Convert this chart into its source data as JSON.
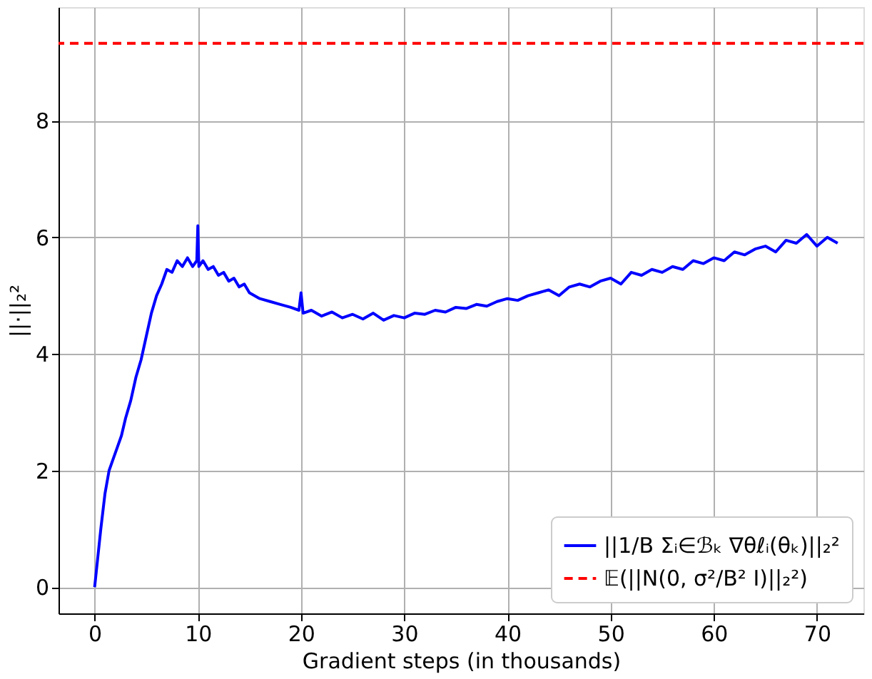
{
  "chart_data": {
    "type": "line",
    "xlabel": "Gradient steps (in thousands)",
    "ylabel": "||·||₂²",
    "series": [
      {
        "name": "||1/B Σᵢ∈ℬₖ ∇θℓᵢ(θₖ)||₂²",
        "color": "#0000ff",
        "x": [
          0,
          0.3,
          0.6,
          1,
          1.4,
          1.8,
          2.2,
          2.6,
          3,
          3.5,
          4,
          4.5,
          5,
          5.5,
          6,
          6.5,
          7,
          7.5,
          8,
          8.5,
          9,
          9.5,
          9.9,
          10,
          10.1,
          10.5,
          11,
          11.5,
          12,
          12.5,
          13,
          13.5,
          14,
          14.5,
          15,
          16,
          17,
          18,
          19,
          19.8,
          20,
          20.2,
          21,
          22,
          23,
          24,
          25,
          26,
          27,
          28,
          29,
          30,
          31,
          32,
          33,
          34,
          35,
          36,
          37,
          38,
          39,
          40,
          41,
          42,
          43,
          44,
          45,
          46,
          47,
          48,
          49,
          50,
          51,
          52,
          53,
          54,
          55,
          56,
          57,
          58,
          59,
          60,
          61,
          62,
          63,
          64,
          65,
          66,
          67,
          68,
          69,
          70,
          71,
          72
        ],
        "values": [
          0,
          0.5,
          1.0,
          1.6,
          2.0,
          2.2,
          2.4,
          2.6,
          2.9,
          3.2,
          3.6,
          3.9,
          4.3,
          4.7,
          5.0,
          5.2,
          5.45,
          5.4,
          5.6,
          5.5,
          5.65,
          5.5,
          5.6,
          6.2,
          5.5,
          5.6,
          5.45,
          5.5,
          5.35,
          5.4,
          5.25,
          5.3,
          5.15,
          5.2,
          5.05,
          4.95,
          4.9,
          4.85,
          4.8,
          4.75,
          5.05,
          4.7,
          4.75,
          4.65,
          4.72,
          4.62,
          4.68,
          4.6,
          4.7,
          4.58,
          4.66,
          4.62,
          4.7,
          4.68,
          4.75,
          4.72,
          4.8,
          4.78,
          4.85,
          4.82,
          4.9,
          4.95,
          4.92,
          5.0,
          5.05,
          5.1,
          5.0,
          5.15,
          5.2,
          5.15,
          5.25,
          5.3,
          5.2,
          5.4,
          5.35,
          5.45,
          5.4,
          5.5,
          5.45,
          5.6,
          5.55,
          5.65,
          5.6,
          5.75,
          5.7,
          5.8,
          5.85,
          5.75,
          5.95,
          5.9,
          6.05,
          5.85,
          6.0,
          5.9
        ]
      }
    ],
    "ref_lines": [
      {
        "axis": "y",
        "value": 9.33,
        "label": "𝔼(||N(0, σ²/B² I)||₂²)",
        "color": "#ff0000",
        "line_style": "dashed"
      }
    ],
    "xlim": [
      -3.5,
      74.5
    ],
    "ylim": [
      -0.45,
      9.95
    ],
    "xticks": [
      0,
      10,
      20,
      30,
      40,
      50,
      60,
      70
    ],
    "yticks": [
      0,
      2,
      4,
      6,
      8
    ],
    "grid": true,
    "legend": "bottom right",
    "marker": "none",
    "line_style": "solid"
  }
}
